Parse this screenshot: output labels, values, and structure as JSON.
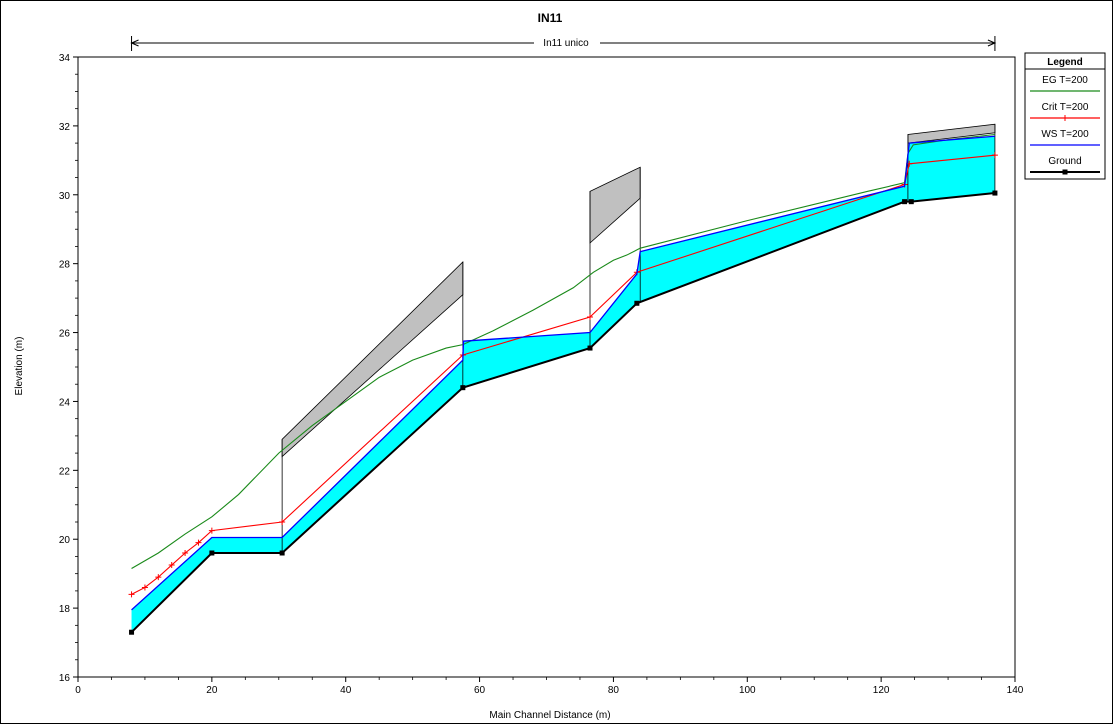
{
  "chart_data": {
    "type": "line",
    "title": "IN11",
    "reach_label": "In11 unico",
    "reach_range": [
      8,
      137
    ],
    "xlabel": "Main Channel Distance (m)",
    "ylabel": "Elevation (m)",
    "xlim": [
      0,
      140
    ],
    "ylim": [
      16,
      34
    ],
    "x_ticks": [
      0,
      20,
      40,
      60,
      80,
      100,
      120,
      140
    ],
    "y_ticks": [
      16,
      18,
      20,
      22,
      24,
      26,
      28,
      30,
      32,
      34
    ],
    "legend": {
      "title": "Legend",
      "placement": "top-right",
      "entries": [
        "EG  T=200",
        "Crit  T=200",
        "WS  T=200",
        "Ground"
      ]
    },
    "colors": {
      "eg": "#1a8a1a",
      "crit": "#ff0000",
      "ws": "#0000ff",
      "ground": "#000000",
      "water_fill": "#00ffff",
      "structure_fill": "#c0c0c0"
    },
    "series": [
      {
        "name": "EG  T=200",
        "x": [
          8,
          12,
          16,
          20,
          24,
          30,
          35,
          40,
          45,
          50,
          55,
          57.5,
          62,
          68,
          74,
          77,
          80,
          82,
          84,
          100,
          118,
          123.5,
          124,
          124.8,
          130,
          137
        ],
        "y": [
          19.15,
          19.6,
          20.15,
          20.65,
          21.3,
          22.5,
          23.3,
          24.0,
          24.7,
          25.2,
          25.55,
          25.65,
          26.05,
          26.65,
          27.3,
          27.75,
          28.1,
          28.25,
          28.45,
          29.25,
          30.1,
          30.35,
          31.2,
          31.45,
          31.6,
          31.75
        ]
      },
      {
        "name": "Crit  T=200",
        "x": [
          8,
          10,
          12,
          14,
          16,
          18,
          20,
          30.5,
          57.5,
          76.5,
          83.5,
          123.5,
          124.2,
          137
        ],
        "y": [
          18.4,
          18.6,
          18.9,
          19.25,
          19.6,
          19.9,
          20.25,
          20.5,
          25.35,
          26.45,
          27.75,
          30.3,
          30.9,
          31.15
        ]
      },
      {
        "name": "WS  T=200",
        "x": [
          8,
          20,
          30.5,
          57.5,
          57.6,
          76.5,
          83.5,
          84.0,
          123.5,
          124.2,
          137
        ],
        "y": [
          17.95,
          20.05,
          20.05,
          25.2,
          25.75,
          26.0,
          27.7,
          28.35,
          30.25,
          31.5,
          31.7
        ]
      },
      {
        "name": "Ground",
        "x": [
          8,
          20,
          30.5,
          57.5,
          76.5,
          83.5,
          123.5,
          124.5,
          137
        ],
        "y": [
          17.3,
          19.6,
          19.6,
          24.4,
          25.55,
          26.85,
          29.8,
          29.8,
          30.05
        ]
      }
    ],
    "structures": [
      {
        "x": [
          30.5,
          57.5
        ],
        "low_chord": [
          22.4,
          27.1
        ],
        "high_chord": [
          22.9,
          28.05
        ]
      },
      {
        "x": [
          76.5,
          84.0
        ],
        "low_chord": [
          28.6,
          29.9
        ],
        "high_chord": [
          30.1,
          30.8
        ]
      },
      {
        "x": [
          124.0,
          137.0
        ],
        "low_chord": [
          31.5,
          31.8
        ],
        "high_chord": [
          31.75,
          32.05
        ]
      }
    ]
  }
}
